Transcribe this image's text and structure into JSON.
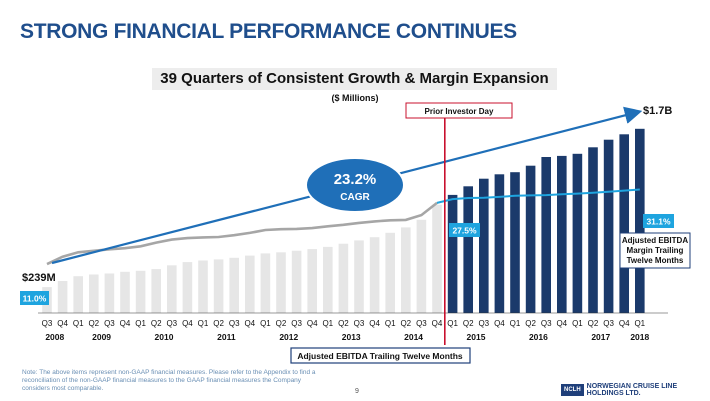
{
  "page": {
    "title": "STRONG FINANCIAL PERFORMANCE CONTINUES",
    "footnote": "Note: The above items represent non-GAAP financial measures. Please refer to the Appendix to find a reconciliation of the non-GAAP financial measures to the GAAP financial measures the Company considers most comparable.",
    "page_number": "9",
    "logo_mark": "NCLH",
    "logo_line1": "NORWEGIAN CRUISE LINE",
    "logo_line2": "HOLDINGS LTD."
  },
  "colors": {
    "title": "#1f4e8c",
    "bar_before": "#e6e6e6",
    "bar_after": "#1b3a6b",
    "margin_before": "#a6a6a6",
    "margin_after": "#1ea4df",
    "divider": "#c8102e",
    "cagr_oval": "#1f6fb8",
    "trend_arrow": "#1f6fb8"
  },
  "chart_data": {
    "type": "bar",
    "title": "39 Quarters of Consistent Growth & Margin Expansion",
    "units": "($ Millions)",
    "categories": [
      "Q3",
      "Q4",
      "Q1",
      "Q2",
      "Q3",
      "Q4",
      "Q1",
      "Q2",
      "Q3",
      "Q4",
      "Q1",
      "Q2",
      "Q3",
      "Q4",
      "Q1",
      "Q2",
      "Q3",
      "Q4",
      "Q1",
      "Q2",
      "Q3",
      "Q4",
      "Q1",
      "Q2",
      "Q3",
      "Q4",
      "Q1",
      "Q2",
      "Q3",
      "Q4",
      "Q1",
      "Q2",
      "Q3",
      "Q4",
      "Q1",
      "Q2",
      "Q3",
      "Q4",
      "Q1"
    ],
    "years": [
      {
        "label": "2008",
        "start": 0,
        "end": 1
      },
      {
        "label": "2009",
        "start": 2,
        "end": 5
      },
      {
        "label": "2010",
        "start": 6,
        "end": 9
      },
      {
        "label": "2011",
        "start": 10,
        "end": 13
      },
      {
        "label": "2012",
        "start": 14,
        "end": 17
      },
      {
        "label": "2013",
        "start": 18,
        "end": 21
      },
      {
        "label": "2014",
        "start": 22,
        "end": 25
      },
      {
        "label": "2015",
        "start": 26,
        "end": 29
      },
      {
        "label": "2016",
        "start": 30,
        "end": 33
      },
      {
        "label": "2017",
        "start": 34,
        "end": 37
      },
      {
        "label": "2018",
        "start": 38,
        "end": 38
      }
    ],
    "series": [
      {
        "name": "Adjusted EBITDA Trailing Twelve Months",
        "values": [
          239,
          295,
          340,
          355,
          365,
          380,
          390,
          405,
          440,
          470,
          485,
          495,
          510,
          530,
          550,
          560,
          575,
          590,
          610,
          640,
          670,
          700,
          740,
          790,
          860,
          1000,
          1090,
          1170,
          1240,
          1280,
          1300,
          1360,
          1440,
          1450,
          1470,
          1530,
          1600,
          1650,
          1700
        ]
      },
      {
        "name": "Adjusted EBITDA Margin Trailing Twelve Months",
        "values": [
          11.0,
          13.0,
          14.2,
          14.6,
          15.0,
          15.3,
          15.8,
          16.8,
          17.6,
          18.0,
          18.2,
          18.3,
          18.8,
          19.4,
          20.2,
          20.4,
          20.5,
          20.7,
          21.2,
          21.6,
          22.1,
          22.5,
          22.8,
          22.9,
          24.2,
          27.5,
          28.5,
          28.8,
          28.9,
          29.1,
          29.4,
          29.5,
          29.6,
          29.8,
          30.0,
          30.2,
          30.5,
          30.8,
          31.1
        ]
      }
    ],
    "divider_label": "Prior Investor Day",
    "divider_after_index": 25,
    "legend_box": "Adjusted EBITDA Trailing Twelve Months",
    "margin_legend": [
      "Adjusted EBITDA",
      "Margin Trailing",
      "Twelve Months"
    ],
    "cagr_value": "23.2%",
    "cagr_label": "CAGR",
    "start_value_label": "$239M",
    "end_value_label": "$1.7B",
    "start_margin_label": "11.0%",
    "mid_margin_label": "27.5%",
    "end_margin_label": "31.1%",
    "bar_ylim": [
      0,
      1800
    ],
    "margin_ylim": [
      0,
      35
    ]
  }
}
